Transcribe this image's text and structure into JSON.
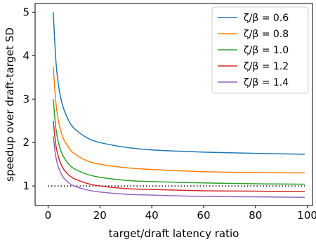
{
  "chart_data": {
    "type": "line",
    "title": "",
    "xlabel": "target/draft latency ratio",
    "ylabel": "speedup over draft-target SD",
    "xlim": [
      -5,
      102
    ],
    "ylim": [
      0.55,
      5.2
    ],
    "xticks": [
      0,
      20,
      40,
      60,
      80,
      100
    ],
    "yticks": [
      1,
      2,
      3,
      4,
      5
    ],
    "grid": false,
    "legend_position": "top-right",
    "series": [
      {
        "name": "ζ/β = 0.6",
        "color": "#1f77b4",
        "x": [
          2,
          3,
          4,
          5,
          6,
          8,
          10,
          15,
          20,
          30,
          40,
          60,
          80,
          99
        ],
        "y": [
          5.0,
          3.89,
          3.33,
          3.0,
          2.78,
          2.5,
          2.33,
          2.11,
          2.0,
          1.89,
          1.83,
          1.78,
          1.75,
          1.73
        ]
      },
      {
        "name": "ζ/β = 0.8",
        "color": "#ff7f0e",
        "x": [
          2,
          3,
          4,
          5,
          6,
          8,
          10,
          15,
          20,
          30,
          40,
          60,
          80,
          99
        ],
        "y": [
          3.75,
          2.92,
          2.5,
          2.25,
          2.08,
          1.88,
          1.75,
          1.58,
          1.5,
          1.42,
          1.38,
          1.33,
          1.31,
          1.3
        ]
      },
      {
        "name": "ζ/β = 1.0",
        "color": "#2ca02c",
        "x": [
          2,
          3,
          4,
          5,
          6,
          8,
          10,
          15,
          20,
          30,
          40,
          60,
          80,
          99
        ],
        "y": [
          3.0,
          2.33,
          2.0,
          1.8,
          1.67,
          1.5,
          1.4,
          1.27,
          1.2,
          1.13,
          1.1,
          1.07,
          1.05,
          1.04
        ]
      },
      {
        "name": "ζ/β = 1.2",
        "color": "#d62728",
        "x": [
          2,
          3,
          4,
          5,
          6,
          8,
          10,
          15,
          20,
          30,
          40,
          60,
          80,
          99
        ],
        "y": [
          2.5,
          1.94,
          1.67,
          1.5,
          1.39,
          1.25,
          1.17,
          1.06,
          1.0,
          0.94,
          0.92,
          0.89,
          0.88,
          0.87
        ]
      },
      {
        "name": "ζ/β = 1.4",
        "color": "#9467bd",
        "x": [
          2,
          3,
          4,
          5,
          6,
          8,
          10,
          15,
          20,
          30,
          40,
          60,
          80,
          99
        ],
        "y": [
          2.14,
          1.67,
          1.43,
          1.29,
          1.19,
          1.07,
          1.0,
          0.91,
          0.86,
          0.81,
          0.79,
          0.76,
          0.75,
          0.74
        ]
      }
    ],
    "reference_line": {
      "style": "dotted",
      "color": "#000000",
      "y": 1,
      "x_range": [
        0,
        99
      ]
    }
  }
}
